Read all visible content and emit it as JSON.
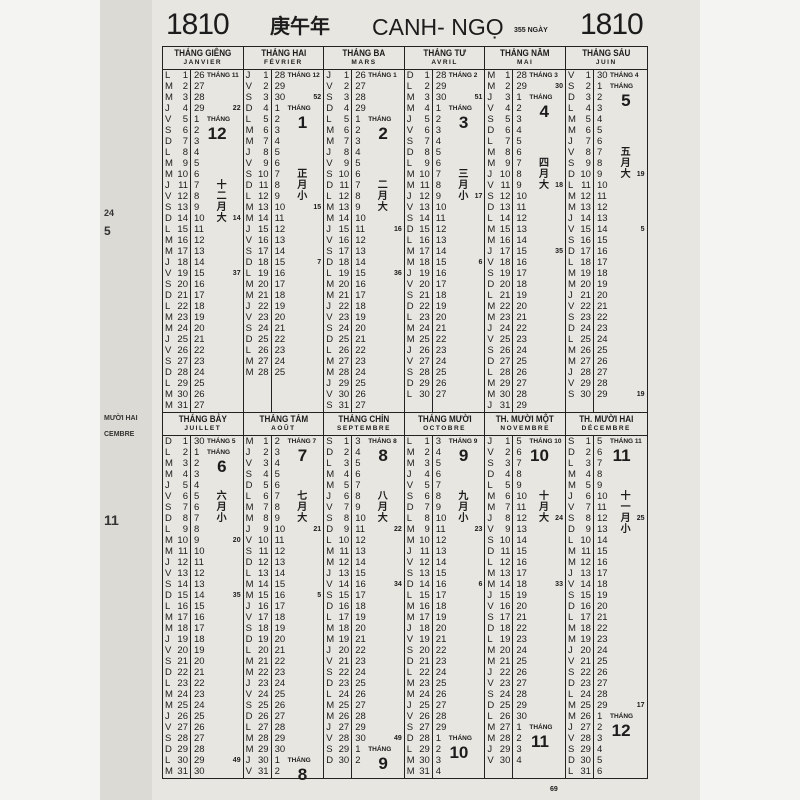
{
  "header": {
    "year_left": "1810",
    "chinese_year": "庚午年",
    "year_name": "CANH- NGỌ",
    "days_count": "355 NGÀY",
    "year_right": "1810"
  },
  "weekday_letters": [
    "D",
    "L",
    "M",
    "M",
    "J",
    "V",
    "S"
  ],
  "month_word": "THÁNG",
  "months": [
    {
      "vn": "THÁNG GIÊNG",
      "fr": "JANVIER",
      "days": 31,
      "first_weekday": 1,
      "lunar_start": 26,
      "lunar_start_month": "11",
      "new_day": 5,
      "new_month": "12",
      "cn": "十二月大",
      "notes": {
        "4": "22",
        "14": "14",
        "19": "37"
      }
    },
    {
      "vn": "THÁNG HAI",
      "fr": "FÉVRIER",
      "days": 28,
      "first_weekday": 4,
      "lunar_start": 28,
      "lunar_start_month": "12",
      "new_day": 4,
      "new_month": "1",
      "cn": "正月小",
      "notes": {
        "3": "52",
        "13": "15",
        "18": "7"
      }
    },
    {
      "vn": "THÁNG BA",
      "fr": "MARS",
      "days": 31,
      "first_weekday": 4,
      "lunar_start": 26,
      "lunar_start_month": "1",
      "new_day": 5,
      "new_month": "2",
      "cn": "二月大",
      "notes": {
        "15": "16",
        "19": "36"
      }
    },
    {
      "vn": "THÁNG TƯ",
      "fr": "AVRIL",
      "days": 30,
      "first_weekday": 0,
      "lunar_start": 28,
      "lunar_start_month": "2",
      "new_day": 4,
      "new_month": "3",
      "cn": "三月小",
      "notes": {
        "3": "51",
        "12": "17",
        "18": "6"
      }
    },
    {
      "vn": "THÁNG NĂM",
      "fr": "MAI",
      "days": 31,
      "first_weekday": 2,
      "lunar_start": 28,
      "lunar_start_month": "3",
      "new_day": 3,
      "new_month": "4",
      "cn": "四月大",
      "notes": {
        "2": "30",
        "11": "18",
        "17": "35"
      }
    },
    {
      "vn": "THÁNG SÁU",
      "fr": "JUIN",
      "days": 30,
      "first_weekday": 5,
      "lunar_start": 30,
      "lunar_start_month": "4",
      "new_day": 2,
      "new_month": "5",
      "cn": "五月大",
      "notes": {
        "10": "19",
        "15": "5",
        "30": "19"
      }
    },
    {
      "vn": "THÁNG BẢY",
      "fr": "JUILLET",
      "days": 31,
      "first_weekday": 0,
      "lunar_start": 30,
      "lunar_start_month": "5",
      "new_day": 2,
      "new_month": "6",
      "cn": "六月小",
      "notes": {
        "10": "20",
        "15": "35",
        "30": "49"
      }
    },
    {
      "vn": "THÁNG TÁM",
      "fr": "AOÛT",
      "days": 31,
      "first_weekday": 3,
      "lunar_start": 2,
      "lunar_start_month": "7",
      "new_day": 30,
      "new_month": "8",
      "cn": "七月大",
      "notes": {
        "9": "21",
        "15": "5"
      }
    },
    {
      "vn": "THÁNG CHÍN",
      "fr": "SEPTEMBRE",
      "days": 30,
      "first_weekday": 6,
      "lunar_start": 3,
      "lunar_start_month": "8",
      "new_day": 29,
      "new_month": "9",
      "cn": "八月大",
      "notes": {
        "9": "22",
        "14": "34",
        "28": "49"
      }
    },
    {
      "vn": "THÁNG MƯỜI",
      "fr": "OCTOBRE",
      "days": 31,
      "first_weekday": 1,
      "lunar_start": 3,
      "lunar_start_month": "9",
      "new_day": 28,
      "new_month": "10",
      "cn": "九月小",
      "notes": {
        "9": "23",
        "14": "6"
      }
    },
    {
      "vn": "TH. MƯỜI MỘT",
      "fr": "NOVEMBRE",
      "days": 30,
      "first_weekday": 4,
      "lunar_start": 5,
      "lunar_start_month": "10",
      "new_day": 27,
      "new_month": "11",
      "cn": "十月大",
      "notes": {
        "8": "24",
        "14": "33"
      }
    },
    {
      "vn": "TH. MƯỜI HAI",
      "fr": "DÉCEMBRE",
      "days": 31,
      "first_weekday": 6,
      "lunar_start": 5,
      "lunar_start_month": "11",
      "new_day": 26,
      "new_month": "12",
      "cn": "十一月小",
      "notes": {
        "8": "25",
        "25": "17"
      }
    }
  ],
  "prev_page": {
    "fragments": [
      "24",
      "5",
      "MƯỜI HAI",
      "CEMBRE",
      "11"
    ]
  },
  "page_number": "69"
}
